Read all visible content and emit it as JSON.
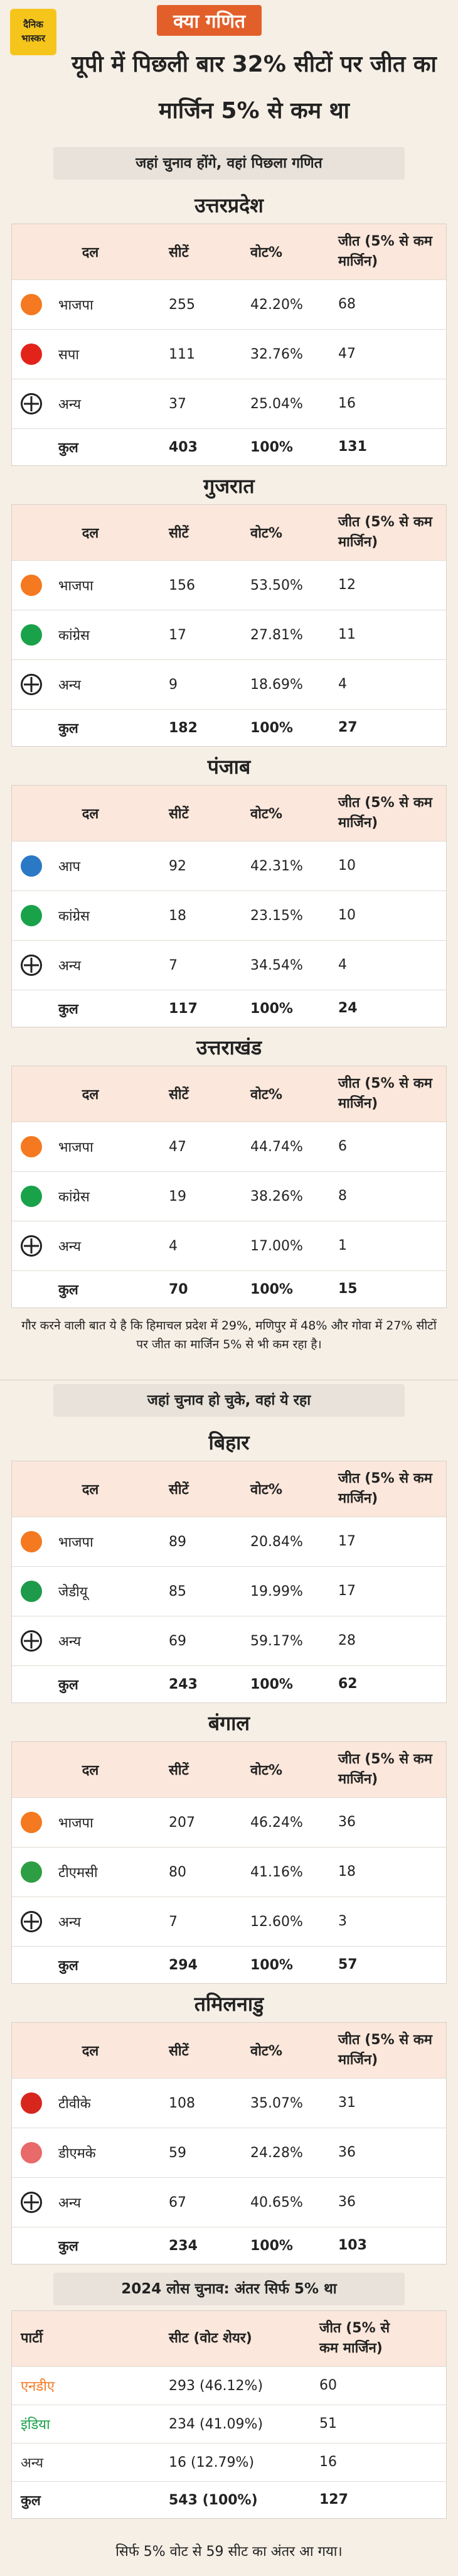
{
  "header": {
    "logo": [
      "दैनिक",
      "भास्कर"
    ],
    "tag": "क्या गणित",
    "title": "यूपी में पिछली बार 32% सीटों पर जीत का मार्जिन 5% से कम था"
  },
  "columns": [
    "दल",
    "सीटें",
    "वोट%",
    "जीत (5% से कम मार्जिन)"
  ],
  "sections": [
    {
      "heading": "जहां चुनाव होंगे, वहां पिछला गणित",
      "states": [
        {
          "name": "उत्तरप्रदेश",
          "rows": [
            {
              "party": "भाजपा",
              "seats": "255",
              "vote": "42.20%",
              "wins": "68",
              "color": "#f47920"
            },
            {
              "party": "सपा",
              "seats": "111",
              "vote": "32.76%",
              "wins": "47",
              "color": "#e2231a"
            },
            {
              "party": "अन्य",
              "seats": "37",
              "vote": "25.04%",
              "wins": "16",
              "color": "#222222"
            }
          ],
          "total": {
            "party": "कुल",
            "seats": "403",
            "vote": "100%",
            "wins": "131"
          }
        },
        {
          "name": "गुजरात",
          "rows": [
            {
              "party": "भाजपा",
              "seats": "156",
              "vote": "53.50%",
              "wins": "12",
              "color": "#f47920"
            },
            {
              "party": "कांग्रेस",
              "seats": "17",
              "vote": "27.81%",
              "wins": "11",
              "color": "#19a24a"
            },
            {
              "party": "अन्य",
              "seats": "9",
              "vote": "18.69%",
              "wins": "4",
              "color": "#222222"
            }
          ],
          "total": {
            "party": "कुल",
            "seats": "182",
            "vote": "100%",
            "wins": "27"
          }
        },
        {
          "name": "पंजाब",
          "rows": [
            {
              "party": "आप",
              "seats": "92",
              "vote": "42.31%",
              "wins": "10",
              "color": "#2b78c5"
            },
            {
              "party": "कांग्रेस",
              "seats": "18",
              "vote": "23.15%",
              "wins": "10",
              "color": "#19a24a"
            },
            {
              "party": "अन्य",
              "seats": "7",
              "vote": "34.54%",
              "wins": "4",
              "color": "#222222"
            }
          ],
          "total": {
            "party": "कुल",
            "seats": "117",
            "vote": "100%",
            "wins": "24"
          }
        },
        {
          "name": "उत्तराखंड",
          "rows": [
            {
              "party": "भाजपा",
              "seats": "47",
              "vote": "44.74%",
              "wins": "6",
              "color": "#f47920"
            },
            {
              "party": "कांग्रेस",
              "seats": "19",
              "vote": "38.26%",
              "wins": "8",
              "color": "#19a24a"
            },
            {
              "party": "अन्य",
              "seats": "4",
              "vote": "17.00%",
              "wins": "1",
              "color": "#222222"
            }
          ],
          "total": {
            "party": "कुल",
            "seats": "70",
            "vote": "100%",
            "wins": "15"
          }
        }
      ],
      "note": "गौर करने वाली बात ये है कि हिमाचल प्रदेश में 29%, मणिपुर में 48% और गोवा में 27% सीटों पर जीत का मार्जिन 5% से भी कम रहा है।"
    },
    {
      "heading": "जहां चुनाव हो चुके, वहां ये रहा",
      "states": [
        {
          "name": "बिहार",
          "rows": [
            {
              "party": "भाजपा",
              "seats": "89",
              "vote": "20.84%",
              "wins": "17",
              "color": "#f47920"
            },
            {
              "party": "जेडीयू",
              "seats": "85",
              "vote": "19.99%",
              "wins": "17",
              "color": "#1e9a4b"
            },
            {
              "party": "अन्य",
              "seats": "69",
              "vote": "59.17%",
              "wins": "28",
              "color": "#222222"
            }
          ],
          "total": {
            "party": "कुल",
            "seats": "243",
            "vote": "100%",
            "wins": "62"
          }
        },
        {
          "name": "बंगाल",
          "rows": [
            {
              "party": "भाजपा",
              "seats": "207",
              "vote": "46.24%",
              "wins": "36",
              "color": "#f47920"
            },
            {
              "party": "टीएमसी",
              "seats": "80",
              "vote": "41.16%",
              "wins": "18",
              "color": "#2e9e44"
            },
            {
              "party": "अन्य",
              "seats": "7",
              "vote": "12.60%",
              "wins": "3",
              "color": "#222222"
            }
          ],
          "total": {
            "party": "कुल",
            "seats": "294",
            "vote": "100%",
            "wins": "57"
          }
        },
        {
          "name": "तमिलनाडु",
          "rows": [
            {
              "party": "टीवीके",
              "seats": "108",
              "vote": "35.07%",
              "wins": "31",
              "color": "#d7261e"
            },
            {
              "party": "डीएमके",
              "seats": "59",
              "vote": "24.28%",
              "wins": "36",
              "color": "#e86a6a"
            },
            {
              "party": "अन्य",
              "seats": "67",
              "vote": "40.65%",
              "wins": "36",
              "color": "#222222"
            }
          ],
          "total": {
            "party": "कुल",
            "seats": "234",
            "vote": "100%",
            "wins": "103"
          }
        }
      ]
    }
  ],
  "national": {
    "heading": "2024 लोस चुनाव: अंतर सिर्फ 5% था",
    "columns": [
      "पार्टी",
      "सीट (वोट शेयर)",
      "जीत (5% से कम मार्जिन)"
    ],
    "rows": [
      {
        "party": "एनडीए",
        "seats": "293 (46.12%)",
        "wins": "60",
        "color": "#f47920"
      },
      {
        "party": "इंडिया",
        "seats": "234 (41.09%)",
        "wins": "51",
        "color": "#19a24a"
      },
      {
        "party": "अन्य",
        "seats": "16 (12.79%)",
        "wins": "16",
        "color": "#333333"
      }
    ],
    "total": {
      "party": "कुल",
      "seats": "543 (100%)",
      "wins": "127"
    }
  },
  "footer": "सिर्फ 5% वोट से 59 सीट का अंतर आ गया।"
}
